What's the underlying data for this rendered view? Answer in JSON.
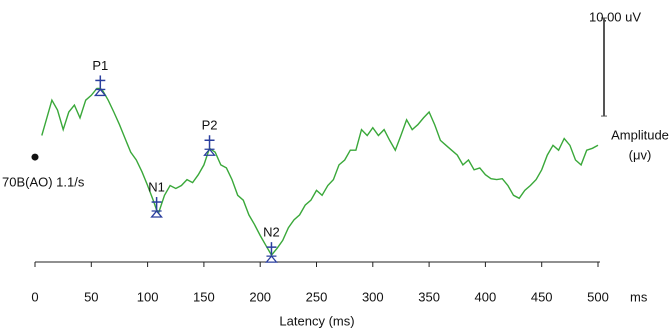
{
  "chart_data": {
    "type": "line",
    "xlabel": "Latency (ms)",
    "x_unit": "ms",
    "ylabel": [
      "Amplitude",
      "(μv)"
    ],
    "trace_label": "70B(AO) 1.1/s",
    "color": "#3aa83a",
    "marker_color": "#2b3f9e",
    "xlim": [
      0,
      500
    ],
    "xticks": [
      0,
      50,
      100,
      150,
      200,
      250,
      300,
      350,
      400,
      450,
      500
    ],
    "ylim": [
      -10.7,
      15
    ],
    "scale_bar": {
      "value": 10,
      "label": "10.00 uV"
    },
    "x": [
      6,
      10,
      15,
      20,
      25,
      30,
      35,
      40,
      45,
      50,
      55,
      58,
      60,
      65,
      70,
      75,
      80,
      85,
      90,
      95,
      100,
      105,
      108,
      110,
      115,
      120,
      125,
      130,
      135,
      140,
      145,
      150,
      155,
      160,
      165,
      170,
      175,
      180,
      185,
      190,
      195,
      200,
      205,
      210,
      215,
      220,
      225,
      230,
      235,
      240,
      245,
      250,
      255,
      260,
      265,
      270,
      275,
      280,
      285,
      290,
      295,
      300,
      305,
      310,
      315,
      320,
      325,
      330,
      335,
      340,
      345,
      350,
      355,
      360,
      365,
      370,
      375,
      380,
      385,
      390,
      395,
      400,
      405,
      410,
      415,
      420,
      425,
      430,
      435,
      440,
      445,
      450,
      455,
      460,
      465,
      470,
      475,
      480,
      485,
      490,
      495,
      500
    ],
    "values": [
      2.2,
      3.8,
      5.8,
      4.8,
      2.8,
      4.6,
      5.3,
      4.0,
      5.8,
      6.3,
      7.0,
      7.0,
      6.8,
      5.8,
      4.6,
      3.3,
      1.9,
      0.5,
      -0.3,
      -1.5,
      -2.9,
      -4.4,
      -5.4,
      -5.6,
      -3.9,
      -2.9,
      -3.2,
      -2.9,
      -2.3,
      -2.6,
      -1.8,
      -0.8,
      0.9,
      0.5,
      -0.8,
      -1.1,
      -2.3,
      -3.9,
      -4.4,
      -5.9,
      -6.9,
      -8.0,
      -9.0,
      -10.0,
      -9.3,
      -8.5,
      -7.2,
      -6.4,
      -5.9,
      -4.9,
      -4.4,
      -3.4,
      -3.9,
      -2.9,
      -2.3,
      -0.8,
      -0.3,
      0.7,
      0.7,
      2.8,
      2.2,
      3.0,
      2.2,
      2.8,
      1.7,
      0.7,
      2.2,
      3.8,
      2.8,
      3.3,
      4.0,
      4.6,
      3.3,
      1.7,
      1.2,
      0.7,
      0.2,
      -0.8,
      -0.3,
      -1.3,
      -1.1,
      -1.8,
      -2.2,
      -2.3,
      -2.2,
      -2.9,
      -3.9,
      -4.2,
      -3.4,
      -2.9,
      -2.3,
      -1.3,
      0.2,
      1.2,
      0.7,
      1.9,
      1.2,
      -0.3,
      -0.8,
      0.7,
      0.9,
      1.2
    ],
    "annotations": [
      {
        "text": "P1",
        "x": 58,
        "y": 7.0
      },
      {
        "text": "N1",
        "x": 108,
        "y": -5.4
      },
      {
        "text": "P2",
        "x": 155,
        "y": 0.9
      },
      {
        "text": "N2",
        "x": 210,
        "y": -10.0
      }
    ]
  }
}
